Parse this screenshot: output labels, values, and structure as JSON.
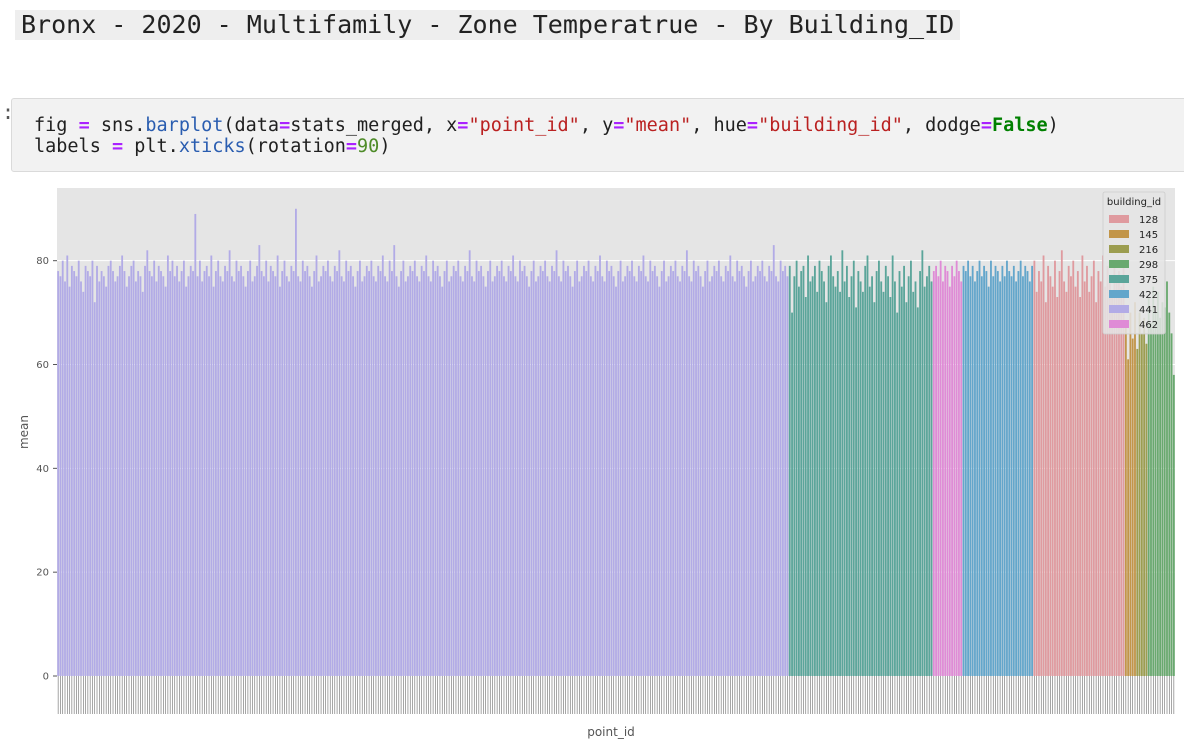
{
  "heading": {
    "text": "Bronx - 2020 - Multifamily - Zone Temperatrue - By Building_ID"
  },
  "cell": {
    "prompt": ":",
    "line1": [
      {
        "t": "fig ",
        "c": ""
      },
      {
        "t": "=",
        "c": "op"
      },
      {
        "t": " sns.",
        "c": ""
      },
      {
        "t": "barplot",
        "c": "fn"
      },
      {
        "t": "(data",
        "c": ""
      },
      {
        "t": "=",
        "c": "op"
      },
      {
        "t": "stats_merged, x",
        "c": ""
      },
      {
        "t": "=",
        "c": "op"
      },
      {
        "t": "\"point_id\"",
        "c": "str"
      },
      {
        "t": ", y",
        "c": ""
      },
      {
        "t": "=",
        "c": "op"
      },
      {
        "t": "\"mean\"",
        "c": "str"
      },
      {
        "t": ", hue",
        "c": ""
      },
      {
        "t": "=",
        "c": "op"
      },
      {
        "t": "\"building_id\"",
        "c": "str"
      },
      {
        "t": ", dodge",
        "c": ""
      },
      {
        "t": "=",
        "c": "op"
      },
      {
        "t": "False",
        "c": "kw"
      },
      {
        "t": ")",
        "c": ""
      }
    ],
    "line2": [
      {
        "t": "labels ",
        "c": ""
      },
      {
        "t": "=",
        "c": "op"
      },
      {
        "t": " plt.",
        "c": ""
      },
      {
        "t": "xticks",
        "c": "fn"
      },
      {
        "t": "(rotation",
        "c": ""
      },
      {
        "t": "=",
        "c": "op"
      },
      {
        "t": "90",
        "c": "num"
      },
      {
        "t": ")",
        "c": ""
      }
    ]
  },
  "chart_data": {
    "type": "bar",
    "xlabel": "point_id",
    "ylabel": "mean",
    "ylim": [
      0,
      94
    ],
    "yticks": [
      0,
      20,
      40,
      60,
      80
    ],
    "grid": true,
    "legend_position": "top-right",
    "legend": {
      "title": "building_id",
      "entries": [
        {
          "label": "128",
          "color": "#df9a9f"
        },
        {
          "label": "145",
          "color": "#c29549"
        },
        {
          "label": "216",
          "color": "#9c9d50"
        },
        {
          "label": "298",
          "color": "#69a96f"
        },
        {
          "label": "375",
          "color": "#5ba59a"
        },
        {
          "label": "422",
          "color": "#63a6cb"
        },
        {
          "label": "441",
          "color": "#b2abe6"
        },
        {
          "label": "462",
          "color": "#df8bd6"
        }
      ]
    },
    "series": [
      {
        "name": "441",
        "color": "#b2abe6",
        "count": 320,
        "values": [
          78,
          77,
          80,
          76,
          81,
          75,
          79,
          78,
          77,
          80,
          76,
          74,
          79,
          78,
          77,
          80,
          72,
          79,
          76,
          78,
          77,
          75,
          79,
          80,
          78,
          76,
          77,
          79,
          81,
          78,
          75,
          77,
          79,
          80,
          76,
          78,
          77,
          74,
          79,
          82,
          78,
          77,
          80,
          76,
          79,
          78,
          77,
          75,
          81,
          78,
          80,
          77,
          79,
          76,
          78,
          80,
          75,
          77,
          79,
          78,
          89,
          77,
          80,
          76,
          78,
          79,
          77,
          81,
          75,
          78,
          80,
          77,
          76,
          79,
          78,
          82,
          77,
          76,
          80,
          78,
          79,
          77,
          75,
          78,
          80,
          76,
          77,
          79,
          83,
          78,
          77,
          80,
          76,
          79,
          78,
          77,
          81,
          75,
          78,
          80,
          77,
          76,
          79,
          78,
          90,
          77,
          76,
          80,
          78,
          79,
          77,
          75,
          78,
          81,
          76,
          77,
          79,
          78,
          80,
          77,
          76,
          79,
          78,
          82,
          77,
          76,
          80,
          78,
          79,
          77,
          75,
          78,
          80,
          76,
          77,
          79,
          78,
          80,
          77,
          76,
          79,
          78,
          81,
          77,
          76,
          80,
          78,
          83,
          77,
          75,
          78,
          80,
          76,
          77,
          79,
          78,
          80,
          77,
          76,
          79,
          78,
          81,
          77,
          76,
          80,
          78,
          79,
          77,
          75,
          78,
          80,
          76,
          77,
          79,
          78,
          80,
          77,
          76,
          79,
          78,
          82,
          77,
          76,
          80,
          78,
          79,
          77,
          75,
          78,
          80,
          76,
          77,
          79,
          78,
          80,
          77,
          76,
          79,
          78,
          81,
          77,
          76,
          80,
          78,
          79,
          77,
          75,
          78,
          80,
          76,
          77,
          79,
          78,
          80,
          77,
          76,
          79,
          78,
          82,
          77,
          76,
          80,
          78,
          79,
          77,
          75,
          78,
          80,
          76,
          77,
          79,
          78,
          80,
          77,
          76,
          79,
          78,
          81,
          77,
          76,
          80,
          78,
          79,
          77,
          75,
          78,
          80,
          76,
          77,
          79,
          78,
          80,
          77,
          76,
          79,
          78,
          81,
          77,
          76,
          80,
          78,
          79,
          77,
          75,
          78,
          80,
          76,
          77,
          79,
          78,
          80,
          77,
          76,
          79,
          78,
          82,
          77,
          76,
          80,
          78,
          79,
          77,
          75,
          78,
          80,
          76,
          77,
          79,
          78,
          80,
          77,
          76,
          79,
          78,
          81,
          77,
          76,
          80,
          78,
          79,
          77,
          75,
          78,
          80,
          76,
          77,
          79,
          78,
          80,
          77,
          76,
          79,
          78,
          83,
          77,
          76,
          80,
          78,
          79,
          77,
          75,
          78,
          80,
          76,
          77,
          79,
          78,
          80,
          77,
          76,
          79,
          78,
          81,
          77,
          76,
          80,
          78,
          79,
          77
        ]
      },
      {
        "name": "375",
        "color": "#5ba59a",
        "count": 63,
        "values": [
          79,
          70,
          77,
          80,
          75,
          78,
          79,
          73,
          81,
          76,
          77,
          79,
          74,
          80,
          78,
          76,
          72,
          79,
          81,
          77,
          75,
          78,
          74,
          82,
          76,
          79,
          73,
          77,
          80,
          71,
          78,
          76,
          74,
          79,
          81,
          75,
          77,
          72,
          78,
          80,
          76,
          74,
          79,
          77,
          73,
          81,
          76,
          70,
          78,
          75,
          79,
          72,
          77,
          80,
          74,
          76,
          71,
          78,
          82,
          75,
          77,
          79,
          76
        ]
      },
      {
        "name": "462",
        "color": "#df8bd6",
        "count": 13,
        "values": [
          78,
          79,
          77,
          80,
          76,
          79,
          78,
          75,
          79,
          77,
          80,
          78,
          76
        ]
      },
      {
        "name": "422",
        "color": "#63a6cb",
        "count": 31,
        "values": [
          79,
          78,
          80,
          77,
          79,
          76,
          78,
          80,
          77,
          79,
          78,
          75,
          80,
          77,
          79,
          78,
          76,
          79,
          77,
          80,
          78,
          77,
          79,
          76,
          78,
          80,
          77,
          79,
          78,
          76,
          79
        ]
      },
      {
        "name": "128",
        "color": "#df9a9f",
        "count": 40,
        "values": [
          80,
          74,
          78,
          76,
          81,
          72,
          79,
          77,
          75,
          80,
          73,
          78,
          82,
          76,
          74,
          79,
          77,
          80,
          75,
          78,
          73,
          81,
          76,
          79,
          74,
          77,
          80,
          72,
          78,
          76,
          81,
          75,
          79,
          77,
          74,
          80,
          76,
          78,
          75,
          79
        ]
      },
      {
        "name": "145",
        "color": "#c29549",
        "count": 5,
        "values": [
          68,
          61,
          70,
          65,
          72
        ]
      },
      {
        "name": "216",
        "color": "#9c9d50",
        "count": 5,
        "values": [
          63,
          70,
          66,
          69,
          64
        ]
      },
      {
        "name": "298",
        "color": "#69a96f",
        "count": 12,
        "values": [
          73,
          68,
          75,
          70,
          74,
          69,
          72,
          71,
          76,
          70,
          66,
          58
        ]
      }
    ]
  }
}
